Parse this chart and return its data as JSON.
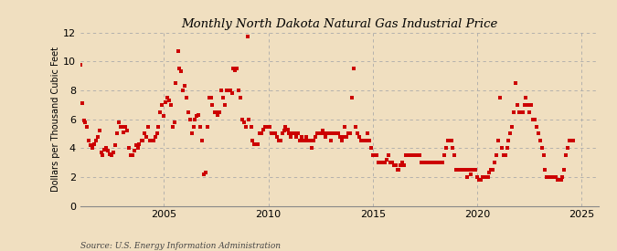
{
  "title": "Monthly North Dakota Natural Gas Industrial Price",
  "ylabel": "Dollars per Thousand Cubic Feet",
  "source": "Source: U.S. Energy Information Administration",
  "bg_color": "#f0dfc0",
  "plot_bg_color": "#f0dfc0",
  "marker_color": "#cc0000",
  "xlim": [
    2001.0,
    2025.8
  ],
  "ylim": [
    0,
    12
  ],
  "yticks": [
    0,
    2,
    4,
    6,
    8,
    10,
    12
  ],
  "xticks": [
    2005,
    2010,
    2015,
    2020,
    2025
  ],
  "data": [
    [
      2001.0,
      9.8
    ],
    [
      2001.08,
      7.1
    ],
    [
      2001.17,
      5.9
    ],
    [
      2001.25,
      5.8
    ],
    [
      2001.33,
      5.5
    ],
    [
      2001.42,
      4.5
    ],
    [
      2001.5,
      4.2
    ],
    [
      2001.58,
      4.0
    ],
    [
      2001.67,
      4.3
    ],
    [
      2001.75,
      4.5
    ],
    [
      2001.83,
      4.8
    ],
    [
      2001.92,
      5.2
    ],
    [
      2002.0,
      3.7
    ],
    [
      2002.08,
      3.5
    ],
    [
      2002.17,
      3.9
    ],
    [
      2002.25,
      4.0
    ],
    [
      2002.33,
      3.8
    ],
    [
      2002.42,
      3.6
    ],
    [
      2002.5,
      3.5
    ],
    [
      2002.58,
      3.7
    ],
    [
      2002.67,
      4.2
    ],
    [
      2002.75,
      5.0
    ],
    [
      2002.83,
      5.8
    ],
    [
      2002.92,
      5.5
    ],
    [
      2003.0,
      5.5
    ],
    [
      2003.08,
      5.1
    ],
    [
      2003.17,
      5.5
    ],
    [
      2003.25,
      5.2
    ],
    [
      2003.33,
      4.0
    ],
    [
      2003.42,
      3.5
    ],
    [
      2003.5,
      3.5
    ],
    [
      2003.58,
      3.8
    ],
    [
      2003.67,
      4.2
    ],
    [
      2003.75,
      4.0
    ],
    [
      2003.83,
      4.3
    ],
    [
      2003.92,
      4.5
    ],
    [
      2004.0,
      4.5
    ],
    [
      2004.08,
      5.0
    ],
    [
      2004.17,
      4.8
    ],
    [
      2004.25,
      5.5
    ],
    [
      2004.33,
      4.5
    ],
    [
      2004.42,
      4.5
    ],
    [
      2004.5,
      4.5
    ],
    [
      2004.58,
      4.8
    ],
    [
      2004.67,
      5.0
    ],
    [
      2004.75,
      5.5
    ],
    [
      2004.83,
      6.5
    ],
    [
      2004.92,
      7.0
    ],
    [
      2005.0,
      6.2
    ],
    [
      2005.08,
      7.2
    ],
    [
      2005.17,
      7.5
    ],
    [
      2005.25,
      7.3
    ],
    [
      2005.33,
      7.0
    ],
    [
      2005.42,
      5.5
    ],
    [
      2005.5,
      5.8
    ],
    [
      2005.58,
      8.5
    ],
    [
      2005.67,
      10.7
    ],
    [
      2005.75,
      9.5
    ],
    [
      2005.83,
      9.3
    ],
    [
      2005.92,
      8.0
    ],
    [
      2006.0,
      8.3
    ],
    [
      2006.08,
      7.5
    ],
    [
      2006.17,
      6.5
    ],
    [
      2006.25,
      6.0
    ],
    [
      2006.33,
      5.0
    ],
    [
      2006.42,
      5.5
    ],
    [
      2006.5,
      6.0
    ],
    [
      2006.58,
      6.2
    ],
    [
      2006.67,
      6.3
    ],
    [
      2006.75,
      5.5
    ],
    [
      2006.83,
      4.5
    ],
    [
      2006.92,
      2.2
    ],
    [
      2007.0,
      2.3
    ],
    [
      2007.08,
      5.5
    ],
    [
      2007.17,
      7.5
    ],
    [
      2007.25,
      7.5
    ],
    [
      2007.33,
      7.0
    ],
    [
      2007.42,
      6.5
    ],
    [
      2007.5,
      6.5
    ],
    [
      2007.58,
      6.3
    ],
    [
      2007.67,
      6.5
    ],
    [
      2007.75,
      8.0
    ],
    [
      2007.83,
      7.5
    ],
    [
      2007.92,
      7.0
    ],
    [
      2008.0,
      8.0
    ],
    [
      2008.08,
      8.0
    ],
    [
      2008.17,
      8.0
    ],
    [
      2008.25,
      7.8
    ],
    [
      2008.33,
      9.5
    ],
    [
      2008.42,
      9.4
    ],
    [
      2008.5,
      9.5
    ],
    [
      2008.58,
      8.0
    ],
    [
      2008.67,
      7.5
    ],
    [
      2008.75,
      6.0
    ],
    [
      2008.83,
      5.8
    ],
    [
      2008.92,
      5.5
    ],
    [
      2009.0,
      11.7
    ],
    [
      2009.08,
      6.0
    ],
    [
      2009.17,
      5.5
    ],
    [
      2009.25,
      4.5
    ],
    [
      2009.33,
      4.3
    ],
    [
      2009.42,
      4.3
    ],
    [
      2009.5,
      4.3
    ],
    [
      2009.58,
      5.0
    ],
    [
      2009.67,
      5.0
    ],
    [
      2009.75,
      5.3
    ],
    [
      2009.83,
      5.5
    ],
    [
      2009.92,
      5.5
    ],
    [
      2010.0,
      5.5
    ],
    [
      2010.08,
      5.5
    ],
    [
      2010.17,
      5.0
    ],
    [
      2010.25,
      5.0
    ],
    [
      2010.33,
      5.0
    ],
    [
      2010.42,
      4.8
    ],
    [
      2010.5,
      4.5
    ],
    [
      2010.58,
      4.5
    ],
    [
      2010.67,
      5.0
    ],
    [
      2010.75,
      5.2
    ],
    [
      2010.83,
      5.5
    ],
    [
      2010.92,
      5.3
    ],
    [
      2011.0,
      5.0
    ],
    [
      2011.08,
      4.8
    ],
    [
      2011.17,
      5.0
    ],
    [
      2011.25,
      5.0
    ],
    [
      2011.33,
      4.8
    ],
    [
      2011.42,
      5.0
    ],
    [
      2011.5,
      4.5
    ],
    [
      2011.58,
      4.8
    ],
    [
      2011.67,
      4.5
    ],
    [
      2011.75,
      4.5
    ],
    [
      2011.83,
      4.8
    ],
    [
      2011.92,
      4.5
    ],
    [
      2012.0,
      4.5
    ],
    [
      2012.08,
      4.0
    ],
    [
      2012.17,
      4.5
    ],
    [
      2012.25,
      4.8
    ],
    [
      2012.33,
      5.0
    ],
    [
      2012.42,
      5.0
    ],
    [
      2012.5,
      5.0
    ],
    [
      2012.58,
      5.2
    ],
    [
      2012.67,
      5.0
    ],
    [
      2012.75,
      4.8
    ],
    [
      2012.83,
      5.0
    ],
    [
      2012.92,
      5.0
    ],
    [
      2013.0,
      4.5
    ],
    [
      2013.08,
      5.0
    ],
    [
      2013.17,
      5.0
    ],
    [
      2013.25,
      5.0
    ],
    [
      2013.33,
      5.0
    ],
    [
      2013.42,
      4.8
    ],
    [
      2013.5,
      4.5
    ],
    [
      2013.58,
      4.8
    ],
    [
      2013.67,
      5.5
    ],
    [
      2013.75,
      4.8
    ],
    [
      2013.83,
      5.0
    ],
    [
      2013.92,
      5.0
    ],
    [
      2014.0,
      7.5
    ],
    [
      2014.08,
      9.5
    ],
    [
      2014.17,
      5.5
    ],
    [
      2014.25,
      5.0
    ],
    [
      2014.33,
      4.8
    ],
    [
      2014.42,
      4.5
    ],
    [
      2014.5,
      4.5
    ],
    [
      2014.58,
      4.5
    ],
    [
      2014.67,
      4.5
    ],
    [
      2014.75,
      5.0
    ],
    [
      2014.83,
      4.5
    ],
    [
      2014.92,
      4.0
    ],
    [
      2015.0,
      3.5
    ],
    [
      2015.08,
      3.5
    ],
    [
      2015.17,
      3.5
    ],
    [
      2015.25,
      3.0
    ],
    [
      2015.33,
      3.0
    ],
    [
      2015.42,
      3.0
    ],
    [
      2015.5,
      3.0
    ],
    [
      2015.58,
      3.0
    ],
    [
      2015.67,
      3.2
    ],
    [
      2015.75,
      3.5
    ],
    [
      2015.83,
      3.0
    ],
    [
      2015.92,
      3.0
    ],
    [
      2016.0,
      2.8
    ],
    [
      2016.08,
      2.8
    ],
    [
      2016.17,
      2.5
    ],
    [
      2016.25,
      2.5
    ],
    [
      2016.33,
      2.8
    ],
    [
      2016.42,
      3.0
    ],
    [
      2016.5,
      2.8
    ],
    [
      2016.58,
      3.5
    ],
    [
      2016.67,
      3.5
    ],
    [
      2016.75,
      3.5
    ],
    [
      2016.83,
      3.5
    ],
    [
      2016.92,
      3.5
    ],
    [
      2017.0,
      3.5
    ],
    [
      2017.08,
      3.5
    ],
    [
      2017.17,
      3.5
    ],
    [
      2017.25,
      3.5
    ],
    [
      2017.33,
      3.0
    ],
    [
      2017.42,
      3.0
    ],
    [
      2017.5,
      3.0
    ],
    [
      2017.58,
      3.0
    ],
    [
      2017.67,
      3.0
    ],
    [
      2017.75,
      3.0
    ],
    [
      2017.83,
      3.0
    ],
    [
      2017.92,
      3.0
    ],
    [
      2018.0,
      3.0
    ],
    [
      2018.08,
      3.0
    ],
    [
      2018.17,
      3.0
    ],
    [
      2018.25,
      3.0
    ],
    [
      2018.33,
      3.0
    ],
    [
      2018.42,
      3.5
    ],
    [
      2018.5,
      4.0
    ],
    [
      2018.58,
      4.5
    ],
    [
      2018.67,
      4.5
    ],
    [
      2018.75,
      4.5
    ],
    [
      2018.83,
      4.0
    ],
    [
      2018.92,
      3.5
    ],
    [
      2019.0,
      2.5
    ],
    [
      2019.08,
      2.5
    ],
    [
      2019.17,
      2.5
    ],
    [
      2019.25,
      2.5
    ],
    [
      2019.33,
      2.5
    ],
    [
      2019.42,
      2.5
    ],
    [
      2019.5,
      2.0
    ],
    [
      2019.58,
      2.5
    ],
    [
      2019.67,
      2.2
    ],
    [
      2019.75,
      2.5
    ],
    [
      2019.83,
      2.5
    ],
    [
      2019.92,
      2.5
    ],
    [
      2020.0,
      2.0
    ],
    [
      2020.08,
      1.8
    ],
    [
      2020.17,
      1.8
    ],
    [
      2020.25,
      2.0
    ],
    [
      2020.33,
      2.0
    ],
    [
      2020.42,
      2.0
    ],
    [
      2020.5,
      2.0
    ],
    [
      2020.58,
      2.3
    ],
    [
      2020.67,
      2.5
    ],
    [
      2020.75,
      2.5
    ],
    [
      2020.83,
      3.0
    ],
    [
      2020.92,
      3.5
    ],
    [
      2021.0,
      4.5
    ],
    [
      2021.08,
      7.5
    ],
    [
      2021.17,
      4.0
    ],
    [
      2021.25,
      3.5
    ],
    [
      2021.33,
      3.5
    ],
    [
      2021.42,
      4.0
    ],
    [
      2021.5,
      4.5
    ],
    [
      2021.58,
      5.0
    ],
    [
      2021.67,
      5.5
    ],
    [
      2021.75,
      6.5
    ],
    [
      2021.83,
      8.5
    ],
    [
      2021.92,
      7.0
    ],
    [
      2022.0,
      6.5
    ],
    [
      2022.08,
      6.5
    ],
    [
      2022.17,
      6.5
    ],
    [
      2022.25,
      7.0
    ],
    [
      2022.33,
      7.5
    ],
    [
      2022.42,
      7.0
    ],
    [
      2022.5,
      6.5
    ],
    [
      2022.58,
      7.0
    ],
    [
      2022.67,
      6.0
    ],
    [
      2022.75,
      6.0
    ],
    [
      2022.83,
      5.5
    ],
    [
      2022.92,
      5.0
    ],
    [
      2023.0,
      4.5
    ],
    [
      2023.08,
      4.0
    ],
    [
      2023.17,
      3.5
    ],
    [
      2023.25,
      2.5
    ],
    [
      2023.33,
      2.0
    ],
    [
      2023.42,
      2.0
    ],
    [
      2023.5,
      2.0
    ],
    [
      2023.58,
      2.0
    ],
    [
      2023.67,
      2.0
    ],
    [
      2023.75,
      2.0
    ],
    [
      2023.83,
      1.8
    ],
    [
      2023.92,
      1.8
    ],
    [
      2024.0,
      1.8
    ],
    [
      2024.08,
      2.0
    ],
    [
      2024.17,
      2.5
    ],
    [
      2024.25,
      3.5
    ],
    [
      2024.33,
      4.0
    ],
    [
      2024.42,
      4.5
    ],
    [
      2024.5,
      4.5
    ],
    [
      2024.58,
      4.5
    ]
  ]
}
